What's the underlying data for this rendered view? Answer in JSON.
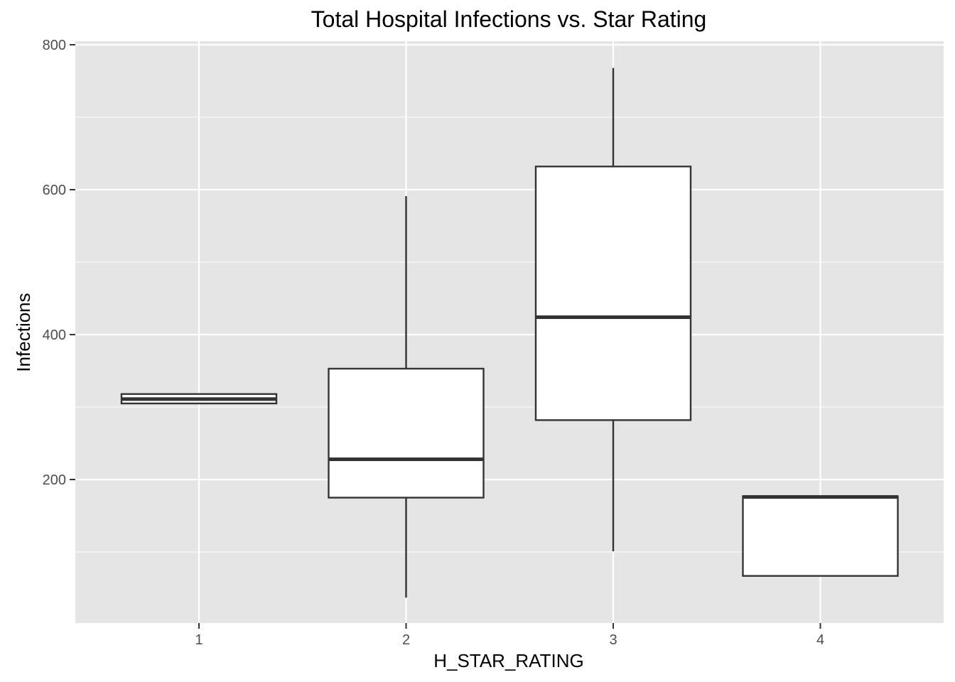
{
  "chart_data": {
    "type": "boxplot",
    "title": "Total Hospital Infections vs. Star Rating",
    "xlabel": "H_STAR_RATING",
    "ylabel": "Infections",
    "categories": [
      "1",
      "2",
      "3",
      "4"
    ],
    "ylim": [
      0,
      800
    ],
    "yticks": [
      200,
      400,
      600,
      800
    ],
    "y_minor_ticks": [
      100,
      300,
      500,
      700
    ],
    "grid": true,
    "boxes": [
      {
        "category": "1",
        "min": 305,
        "q1": 305,
        "median": 311,
        "q3": 318,
        "max": 318
      },
      {
        "category": "2",
        "min": 37,
        "q1": 175,
        "median": 228,
        "q3": 353,
        "max": 591
      },
      {
        "category": "3",
        "min": 101,
        "q1": 282,
        "median": 424,
        "q3": 632,
        "max": 768
      },
      {
        "category": "4",
        "min": 67,
        "q1": 67,
        "median": 176,
        "q3": 177,
        "max": 177
      }
    ],
    "colors": {
      "panel_background": "#e5e5e5",
      "grid": "#ffffff",
      "box_fill": "#ffffff",
      "box_line": "#333333"
    }
  }
}
